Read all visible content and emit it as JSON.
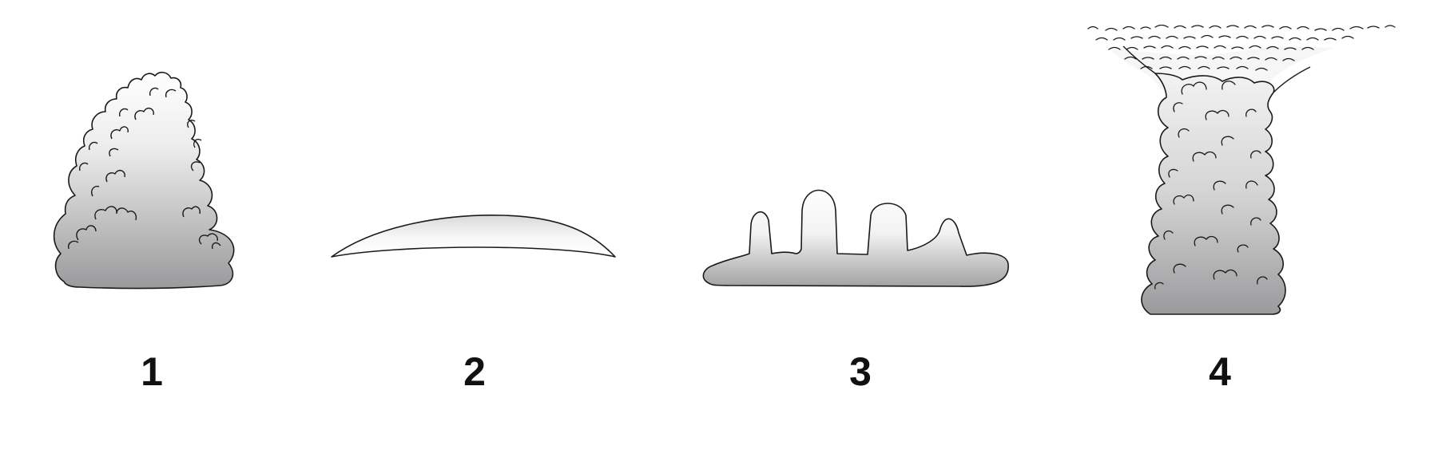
{
  "figures": [
    {
      "label": "1"
    },
    {
      "label": "2"
    },
    {
      "label": "3"
    },
    {
      "label": "4"
    }
  ],
  "colors": {
    "fill_top": "#ffffff",
    "fill_bottom": "#9a9a9c",
    "outline": "#1a1a1a",
    "label": "#111111"
  }
}
